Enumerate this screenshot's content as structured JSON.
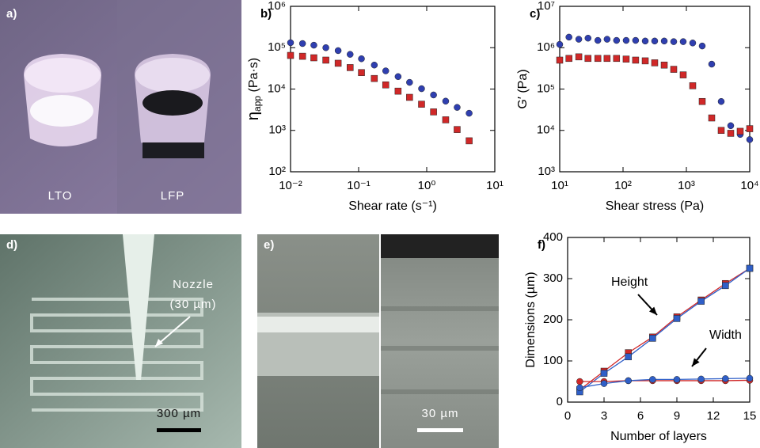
{
  "panels": {
    "a": {
      "label": "a)",
      "texts": [
        "LTO",
        "LFP"
      ]
    },
    "d": {
      "label": "d)",
      "texts": [
        "Nozzle",
        "(30 µm)",
        "300 µm"
      ]
    },
    "e": {
      "label": "e)",
      "texts": [
        "30 µm"
      ]
    }
  },
  "chart_data": [
    {
      "type": "scatter",
      "label": "b)",
      "xlabel": "Shear rate (s⁻¹)",
      "ylabel": {
        "symbol": "η",
        "subscript": "app",
        "unit": " (Pa·s)"
      },
      "xscale": "log",
      "yscale": "log",
      "xlim": [
        0.01,
        10
      ],
      "ylim": [
        100,
        1000000
      ],
      "xticks": [
        {
          "value": 0.01,
          "label": "10⁻²"
        },
        {
          "value": 0.1,
          "label": "10⁻¹"
        },
        {
          "value": 1,
          "label": "10⁰"
        },
        {
          "value": 10,
          "label": "10¹"
        }
      ],
      "yticks": [
        {
          "value": 100,
          "label": "10²"
        },
        {
          "value": 1000,
          "label": "10³"
        },
        {
          "value": 10000,
          "label": "10⁴"
        },
        {
          "value": 100000,
          "label": "10⁵"
        },
        {
          "value": 1000000,
          "label": "10⁶"
        }
      ],
      "x": [
        0.01,
        0.015,
        0.022,
        0.033,
        0.05,
        0.075,
        0.11,
        0.17,
        0.25,
        0.38,
        0.56,
        0.84,
        1.26,
        1.9,
        2.8,
        4.2
      ],
      "series": [
        {
          "color": "#2f3fb0",
          "marker": "circle",
          "values": [
            132000,
            126000,
            115000,
            100000,
            85000,
            69000,
            54000,
            38000,
            27500,
            20000,
            14500,
            10200,
            7200,
            5100,
            3600,
            2600
          ]
        },
        {
          "color": "#d02828",
          "marker": "square",
          "values": [
            65000,
            62000,
            57000,
            50000,
            42000,
            33000,
            25000,
            18000,
            12600,
            8900,
            6300,
            4300,
            2800,
            1800,
            1050,
            560
          ]
        }
      ]
    },
    {
      "type": "scatter",
      "label": "c)",
      "xlabel": "Shear stress (Pa)",
      "ylabel": {
        "symbol": "G′",
        "subscript": "",
        "unit": " (Pa)"
      },
      "xscale": "log",
      "yscale": "log",
      "xlim": [
        10,
        10000
      ],
      "ylim": [
        1000,
        10000000
      ],
      "xticks": [
        {
          "value": 10,
          "label": "10¹"
        },
        {
          "value": 100,
          "label": "10²"
        },
        {
          "value": 1000,
          "label": "10³"
        },
        {
          "value": 10000,
          "label": "10⁴"
        }
      ],
      "yticks": [
        {
          "value": 1000,
          "label": "10³"
        },
        {
          "value": 10000,
          "label": "10⁴"
        },
        {
          "value": 100000,
          "label": "10⁵"
        },
        {
          "value": 1000000,
          "label": "10⁶"
        },
        {
          "value": 10000000,
          "label": "10⁷"
        }
      ],
      "x": [
        10,
        14,
        20,
        28,
        40,
        56,
        79,
        112,
        158,
        224,
        316,
        447,
        631,
        891,
        1259,
        1778,
        2512,
        3548,
        5012,
        7079,
        10000
      ],
      "series": [
        {
          "color": "#2f3fb0",
          "marker": "circle",
          "values": [
            1200000,
            1800000,
            1600000,
            1700000,
            1500000,
            1600000,
            1500000,
            1500000,
            1500000,
            1450000,
            1450000,
            1450000,
            1400000,
            1400000,
            1300000,
            1100000,
            400000,
            50000,
            13000,
            8000,
            6000
          ]
        },
        {
          "color": "#d02828",
          "marker": "square",
          "values": [
            500000,
            550000,
            600000,
            550000,
            550000,
            550000,
            550000,
            530000,
            500000,
            480000,
            430000,
            380000,
            300000,
            220000,
            120000,
            50000,
            20000,
            10000,
            8500,
            9500,
            11000
          ]
        }
      ]
    },
    {
      "type": "line",
      "label": "f)",
      "xlabel": "Number of layers",
      "ylabel": {
        "symbol": "Dimensions (µm)",
        "subscript": "",
        "unit": ""
      },
      "xscale": "linear",
      "yscale": "linear",
      "xlim": [
        0,
        15
      ],
      "ylim": [
        0,
        400
      ],
      "xticks": [
        0,
        3,
        6,
        9,
        12,
        15
      ],
      "yticks": [
        0,
        100,
        200,
        300,
        400
      ],
      "x": [
        1,
        3,
        5,
        7,
        9,
        11,
        13,
        15
      ],
      "series": [
        {
          "color": "#d02828",
          "marker": "square",
          "values": [
            30,
            75,
            120,
            158,
            207,
            248,
            288,
            325
          ]
        },
        {
          "color": "#2f5fc8",
          "marker": "square",
          "values": [
            25,
            70,
            110,
            155,
            203,
            245,
            283,
            325
          ]
        },
        {
          "color": "#d02828",
          "marker": "circle",
          "values": [
            50,
            50,
            52,
            52,
            52,
            52,
            52,
            53
          ]
        },
        {
          "color": "#2f5fc8",
          "marker": "circle",
          "values": [
            35,
            45,
            52,
            55,
            55,
            56,
            57,
            58
          ]
        }
      ],
      "annotations": [
        "Height",
        "Width"
      ]
    }
  ]
}
